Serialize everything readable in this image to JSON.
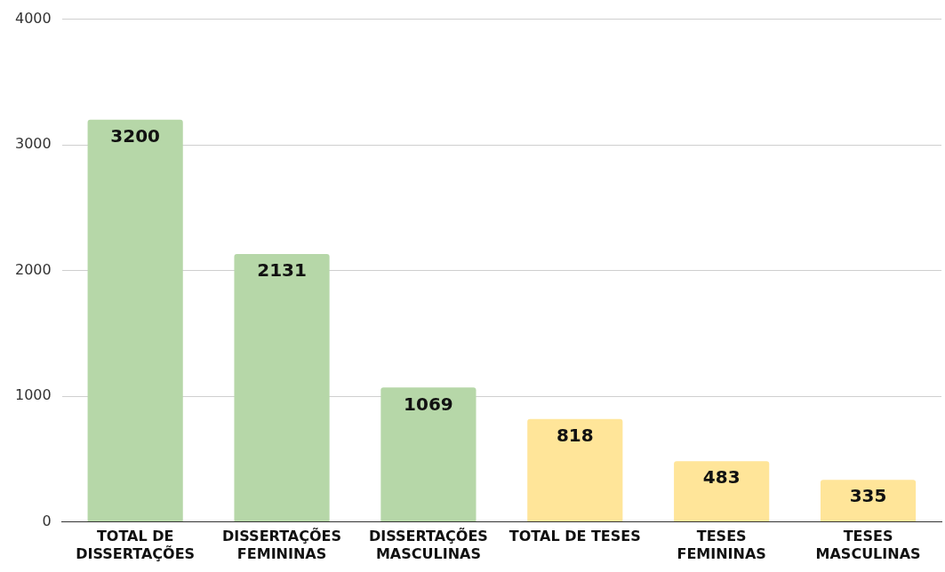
{
  "chart_data": {
    "type": "bar",
    "categories": [
      "TOTAL DE DISSERTAÇÕES",
      "DISSERTAÇÕES FEMININAS",
      "DISSERTAÇÕES MASCULINAS",
      "TOTAL DE TESES",
      "TESES FEMININAS",
      "TESES MASCULINAS"
    ],
    "values": [
      3200,
      2131,
      1069,
      818,
      483,
      335
    ],
    "colors": [
      "#b6d7a8",
      "#b6d7a8",
      "#b6d7a8",
      "#ffe599",
      "#ffe599",
      "#ffe599"
    ],
    "ylim": [
      0,
      4000
    ],
    "yticks": [
      0,
      1000,
      2000,
      3000,
      4000
    ],
    "grid": "y",
    "data_labels": true,
    "legend": false
  }
}
